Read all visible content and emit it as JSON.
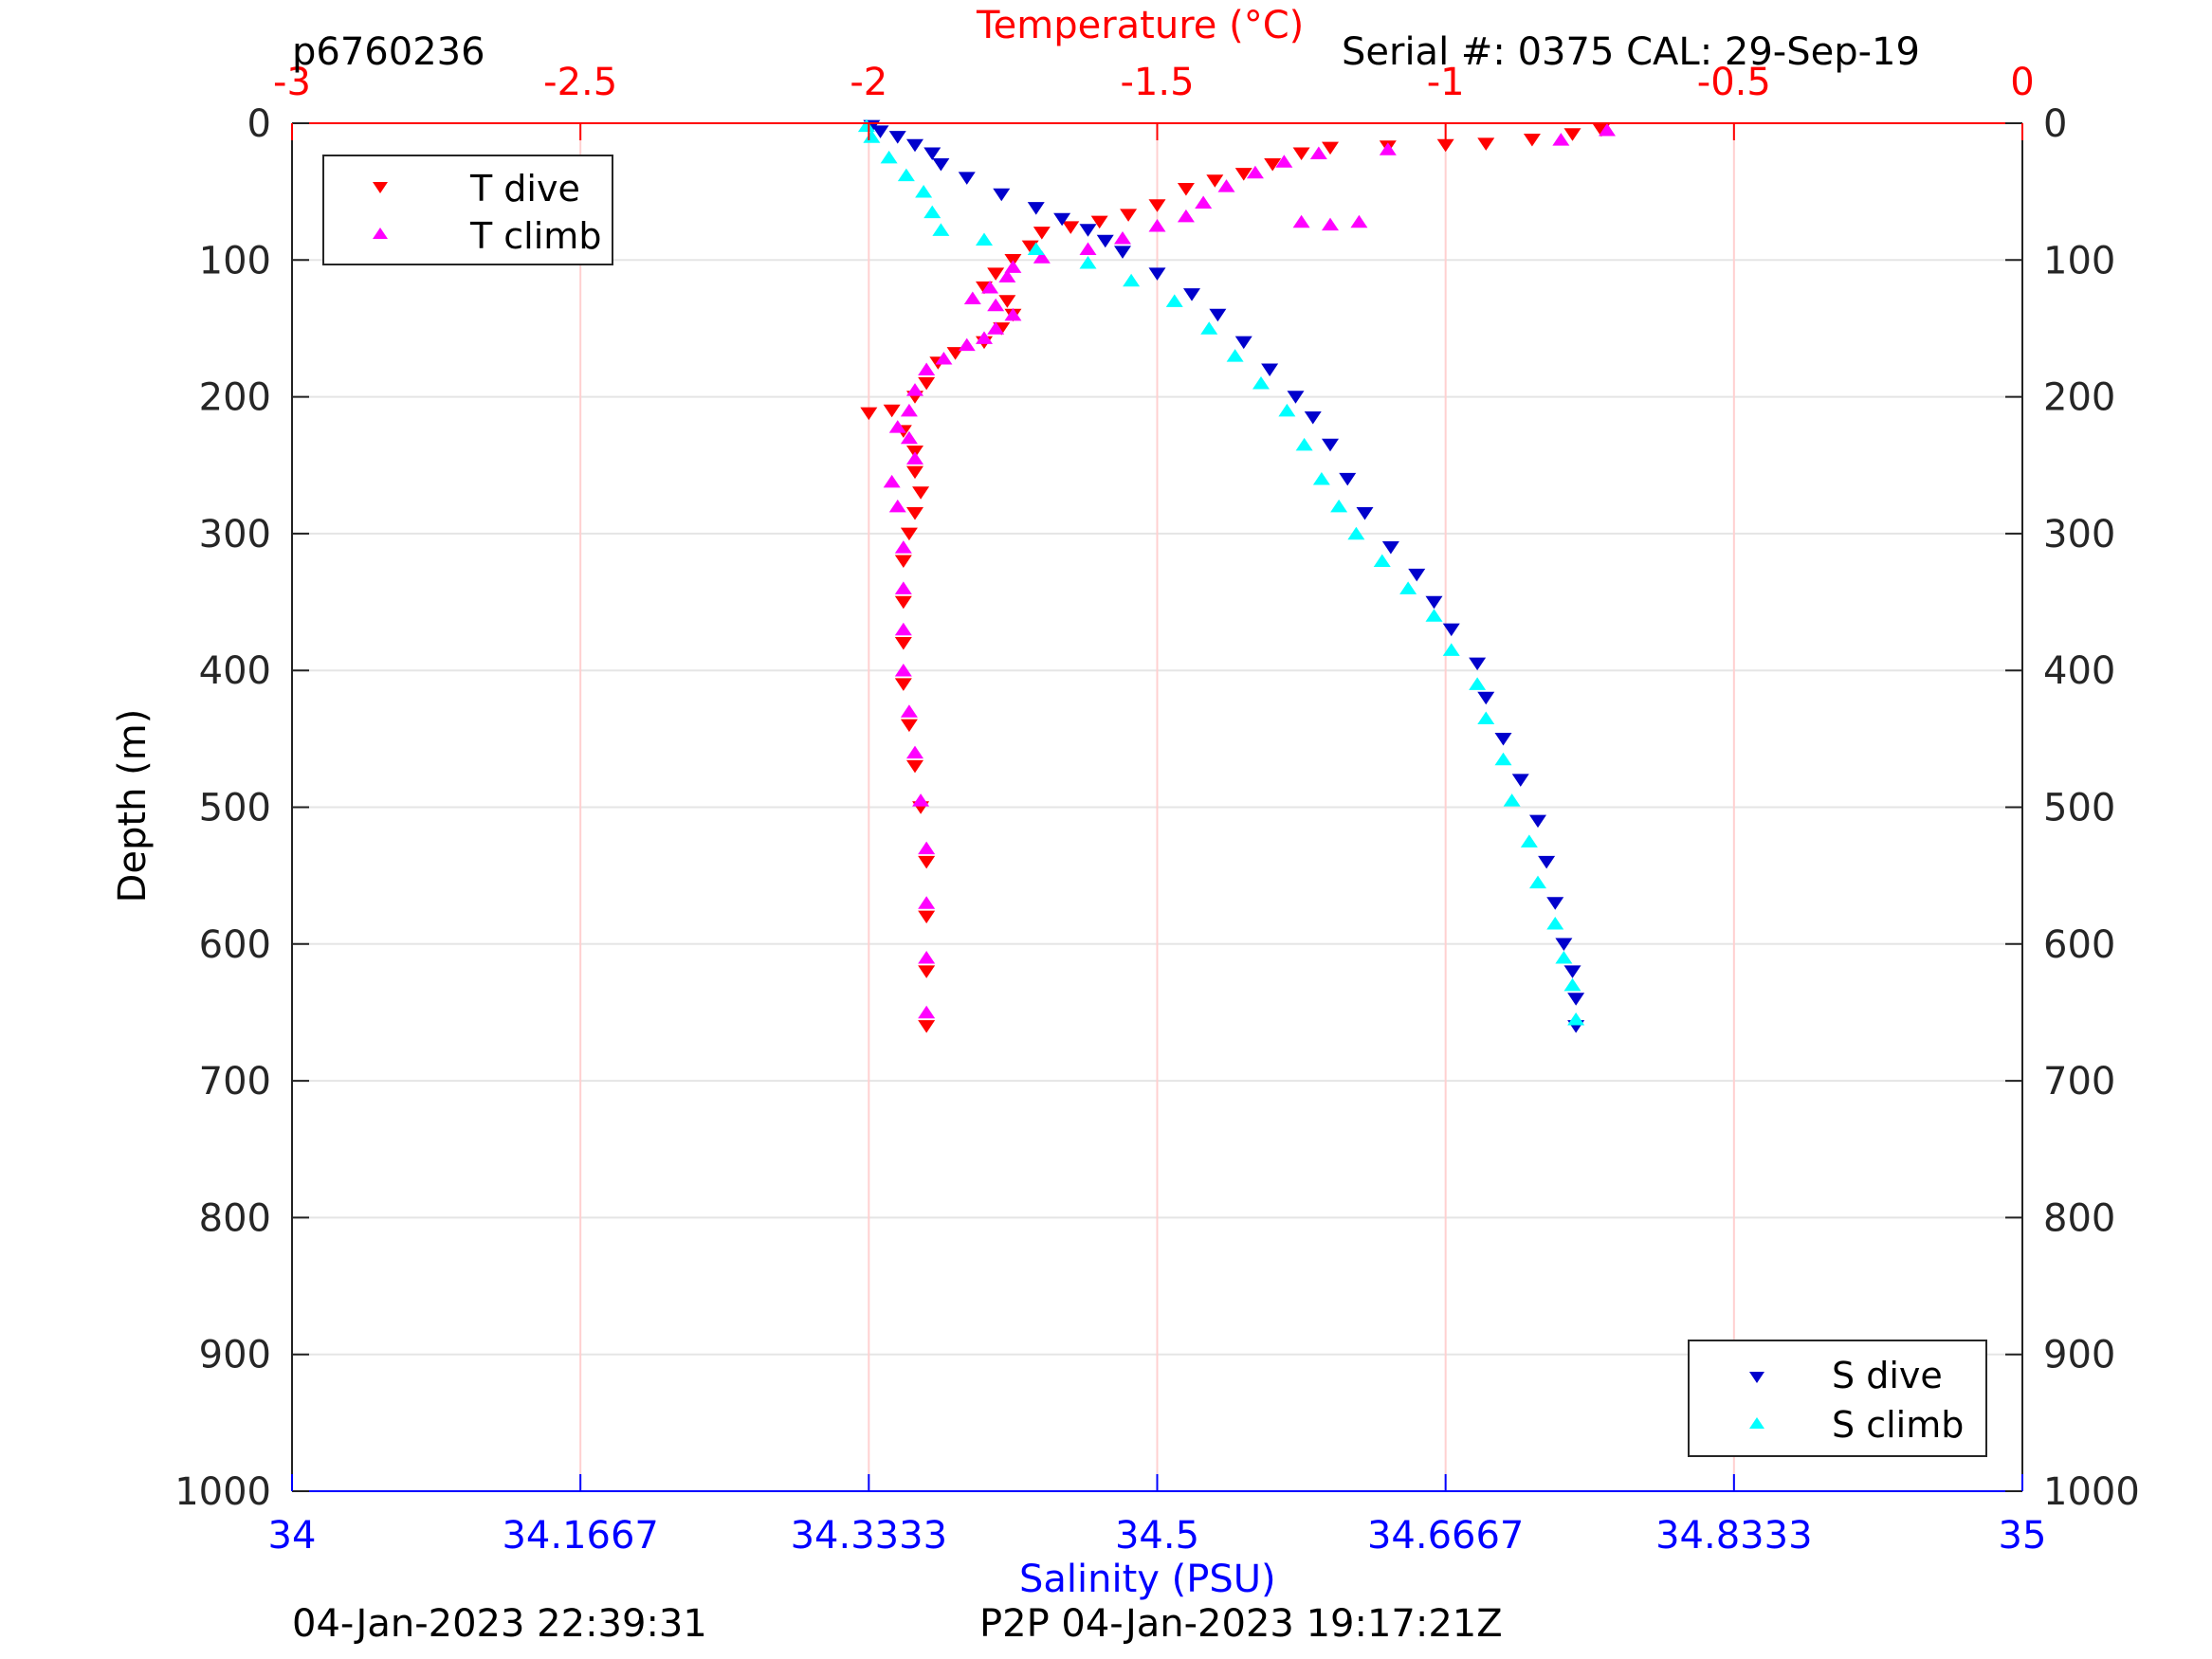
{
  "header": {
    "glider_id": "p6760236",
    "serial": "Serial #: 0375  CAL: 29-Sep-19"
  },
  "footer": {
    "plot_time": "04-Jan-2023 22:39:31",
    "p2p_time": "P2P 04-Jan-2023 19:17:21Z"
  },
  "legend_temperature": {
    "items": [
      {
        "label": "T dive",
        "color": "#ff0000",
        "marker": "triangle-down"
      },
      {
        "label": "T climb",
        "color": "#ff00ff",
        "marker": "triangle-up"
      }
    ]
  },
  "legend_salinity": {
    "items": [
      {
        "label": "S dive",
        "color": "#0000cc",
        "marker": "triangle-down"
      },
      {
        "label": "S climb",
        "color": "#00ffff",
        "marker": "triangle-up"
      }
    ]
  },
  "chart_data": {
    "type": "scatter",
    "ylabel": "Depth (m)",
    "xlabel_top": "Temperature (°C)",
    "xlabel_bottom": "Salinity (PSU)",
    "ylim": [
      0,
      1000
    ],
    "y_reversed": true,
    "y_ticks": [
      "0",
      "100",
      "200",
      "300",
      "400",
      "500",
      "600",
      "700",
      "800",
      "900",
      "1000"
    ],
    "x_top_lim": [
      -3,
      0
    ],
    "x_top_ticks": [
      "-3",
      "-2.5",
      "-2",
      "-1.5",
      "-1",
      "-0.5",
      "0"
    ],
    "x_bottom_lim": [
      34,
      35
    ],
    "x_bottom_ticks": [
      "34",
      "34.1667",
      "34.3333",
      "34.5",
      "34.6667",
      "34.8333",
      "35"
    ],
    "grid": true,
    "colors": {
      "axis_top": "#ff0000",
      "axis_bottom": "#0000ff",
      "axis_left": "#222222",
      "grid": "#e5e5e5",
      "grid_top": "#ffd0d0"
    },
    "series": [
      {
        "name": "T dive",
        "axis": "temperature",
        "color": "#ff0000",
        "marker": "triangle-down",
        "points": [
          [
            -0.73,
            5
          ],
          [
            -0.78,
            8
          ],
          [
            -0.85,
            12
          ],
          [
            -0.93,
            15
          ],
          [
            -1.0,
            16
          ],
          [
            -1.1,
            17
          ],
          [
            -1.2,
            18
          ],
          [
            -1.25,
            22
          ],
          [
            -1.3,
            30
          ],
          [
            -1.35,
            37
          ],
          [
            -1.4,
            42
          ],
          [
            -1.45,
            48
          ],
          [
            -1.5,
            60
          ],
          [
            -1.55,
            67
          ],
          [
            -1.6,
            72
          ],
          [
            -1.65,
            76
          ],
          [
            -1.7,
            80
          ],
          [
            -1.72,
            90
          ],
          [
            -1.75,
            100
          ],
          [
            -1.78,
            110
          ],
          [
            -1.8,
            120
          ],
          [
            -1.76,
            130
          ],
          [
            -1.75,
            140
          ],
          [
            -1.77,
            150
          ],
          [
            -1.8,
            160
          ],
          [
            -1.85,
            168
          ],
          [
            -1.88,
            175
          ],
          [
            -1.9,
            190
          ],
          [
            -1.92,
            200
          ],
          [
            -1.96,
            210
          ],
          [
            -2.0,
            212
          ],
          [
            -1.94,
            225
          ],
          [
            -1.92,
            240
          ],
          [
            -1.92,
            255
          ],
          [
            -1.91,
            270
          ],
          [
            -1.92,
            285
          ],
          [
            -1.93,
            300
          ],
          [
            -1.94,
            320
          ],
          [
            -1.94,
            350
          ],
          [
            -1.94,
            380
          ],
          [
            -1.94,
            410
          ],
          [
            -1.93,
            440
          ],
          [
            -1.92,
            470
          ],
          [
            -1.91,
            500
          ],
          [
            -1.9,
            540
          ],
          [
            -1.9,
            580
          ],
          [
            -1.9,
            620
          ],
          [
            -1.9,
            660
          ]
        ]
      },
      {
        "name": "T climb",
        "axis": "temperature",
        "color": "#ff00ff",
        "marker": "triangle-up",
        "points": [
          [
            -1.9,
            650
          ],
          [
            -1.9,
            610
          ],
          [
            -1.9,
            570
          ],
          [
            -1.9,
            530
          ],
          [
            -1.91,
            495
          ],
          [
            -1.92,
            460
          ],
          [
            -1.93,
            430
          ],
          [
            -1.94,
            400
          ],
          [
            -1.94,
            370
          ],
          [
            -1.94,
            340
          ],
          [
            -1.94,
            310
          ],
          [
            -1.95,
            280
          ],
          [
            -1.96,
            262
          ],
          [
            -1.92,
            245
          ],
          [
            -1.93,
            230
          ],
          [
            -1.95,
            222
          ],
          [
            -1.93,
            210
          ],
          [
            -1.92,
            195
          ],
          [
            -1.9,
            180
          ],
          [
            -1.87,
            172
          ],
          [
            -1.83,
            162
          ],
          [
            -1.8,
            157
          ],
          [
            -1.78,
            150
          ],
          [
            -1.75,
            140
          ],
          [
            -1.78,
            133
          ],
          [
            -1.82,
            128
          ],
          [
            -1.79,
            120
          ],
          [
            -1.76,
            112
          ],
          [
            -1.75,
            105
          ],
          [
            -1.7,
            98
          ],
          [
            -1.62,
            92
          ],
          [
            -1.56,
            84
          ],
          [
            -1.5,
            75
          ],
          [
            -1.45,
            68
          ],
          [
            -1.42,
            58
          ],
          [
            -1.38,
            46
          ],
          [
            -1.33,
            36
          ],
          [
            -1.28,
            28
          ],
          [
            -1.22,
            22
          ],
          [
            -1.1,
            19
          ],
          [
            -0.8,
            12
          ],
          [
            -0.72,
            5
          ],
          [
            -1.25,
            72
          ],
          [
            -1.2,
            74
          ],
          [
            -1.15,
            72
          ]
        ]
      },
      {
        "name": "S dive",
        "axis": "salinity",
        "color": "#0000cc",
        "marker": "triangle-down",
        "points": [
          [
            34.335,
            2
          ],
          [
            34.34,
            6
          ],
          [
            34.35,
            10
          ],
          [
            34.36,
            16
          ],
          [
            34.37,
            22
          ],
          [
            34.375,
            30
          ],
          [
            34.39,
            40
          ],
          [
            34.41,
            52
          ],
          [
            34.43,
            62
          ],
          [
            34.445,
            70
          ],
          [
            34.46,
            78
          ],
          [
            34.47,
            86
          ],
          [
            34.48,
            94
          ],
          [
            34.5,
            110
          ],
          [
            34.52,
            125
          ],
          [
            34.535,
            140
          ],
          [
            34.55,
            160
          ],
          [
            34.565,
            180
          ],
          [
            34.58,
            200
          ],
          [
            34.59,
            215
          ],
          [
            34.6,
            235
          ],
          [
            34.61,
            260
          ],
          [
            34.62,
            285
          ],
          [
            34.635,
            310
          ],
          [
            34.65,
            330
          ],
          [
            34.66,
            350
          ],
          [
            34.67,
            370
          ],
          [
            34.685,
            395
          ],
          [
            34.69,
            420
          ],
          [
            34.7,
            450
          ],
          [
            34.71,
            480
          ],
          [
            34.72,
            510
          ],
          [
            34.725,
            540
          ],
          [
            34.73,
            570
          ],
          [
            34.735,
            600
          ],
          [
            34.74,
            620
          ],
          [
            34.742,
            640
          ],
          [
            34.742,
            660
          ]
        ]
      },
      {
        "name": "S climb",
        "axis": "salinity",
        "color": "#00ffff",
        "marker": "triangle-up",
        "points": [
          [
            34.742,
            655
          ],
          [
            34.74,
            630
          ],
          [
            34.735,
            610
          ],
          [
            34.73,
            585
          ],
          [
            34.72,
            555
          ],
          [
            34.715,
            525
          ],
          [
            34.705,
            495
          ],
          [
            34.7,
            465
          ],
          [
            34.69,
            435
          ],
          [
            34.685,
            410
          ],
          [
            34.67,
            385
          ],
          [
            34.66,
            360
          ],
          [
            34.645,
            340
          ],
          [
            34.63,
            320
          ],
          [
            34.615,
            300
          ],
          [
            34.605,
            280
          ],
          [
            34.595,
            260
          ],
          [
            34.585,
            235
          ],
          [
            34.575,
            210
          ],
          [
            34.56,
            190
          ],
          [
            34.545,
            170
          ],
          [
            34.53,
            150
          ],
          [
            34.51,
            130
          ],
          [
            34.485,
            115
          ],
          [
            34.46,
            102
          ],
          [
            34.43,
            92
          ],
          [
            34.4,
            85
          ],
          [
            34.375,
            78
          ],
          [
            34.37,
            65
          ],
          [
            34.365,
            50
          ],
          [
            34.355,
            38
          ],
          [
            34.345,
            25
          ],
          [
            34.335,
            10
          ],
          [
            34.332,
            2
          ]
        ]
      }
    ]
  }
}
